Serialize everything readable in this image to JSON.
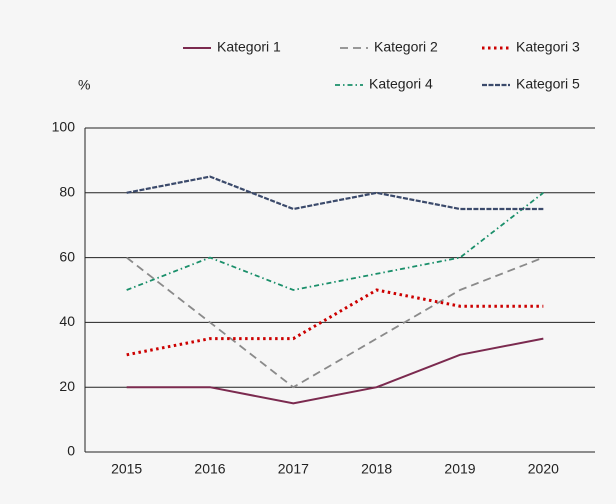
{
  "chart_data": {
    "type": "line",
    "ylabel": "%",
    "categories": [
      "2015",
      "2016",
      "2017",
      "2018",
      "2019",
      "2020"
    ],
    "series": [
      {
        "name": "Kategori 1",
        "color": "#7b2a4f",
        "values": [
          20,
          20,
          15,
          20,
          30,
          35
        ]
      },
      {
        "name": "Kategori 2",
        "color": "#8a8a8a",
        "values": [
          60,
          40,
          20,
          35,
          50,
          60
        ]
      },
      {
        "name": "Kategori 3",
        "color": "#cc0000",
        "values": [
          30,
          35,
          35,
          50,
          45,
          45
        ]
      },
      {
        "name": "Kategori 4",
        "color": "#1a8f6a",
        "values": [
          50,
          60,
          50,
          55,
          60,
          80
        ]
      },
      {
        "name": "Kategori 5",
        "color": "#3b4a6b",
        "values": [
          80,
          85,
          75,
          80,
          75,
          75
        ]
      }
    ],
    "ylim": [
      0,
      100
    ],
    "yticks": [
      0,
      20,
      40,
      60,
      80,
      100
    ],
    "grid": true
  }
}
